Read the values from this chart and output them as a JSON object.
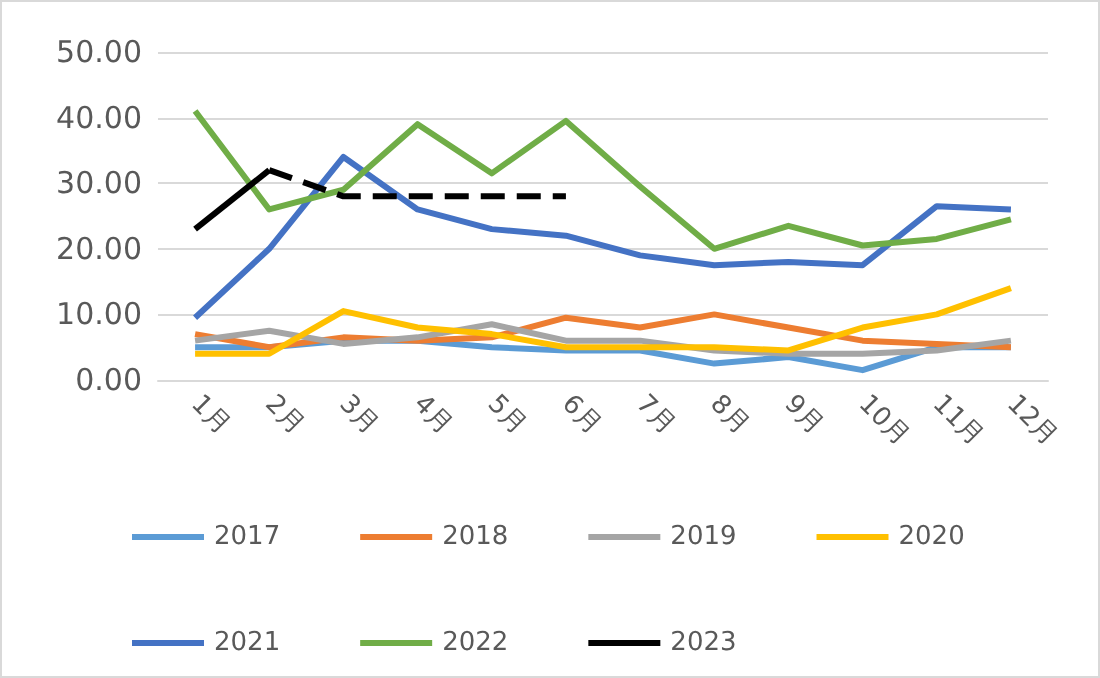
{
  "chart_data": {
    "type": "line",
    "categories": [
      "1月",
      "2月",
      "3月",
      "4月",
      "5月",
      "6月",
      "7月",
      "8月",
      "9月",
      "10月",
      "11月",
      "12月"
    ],
    "ylim": [
      0,
      50
    ],
    "yticks": [
      {
        "value": 0,
        "label": "0.00"
      },
      {
        "value": 10,
        "label": "10.00"
      },
      {
        "value": 20,
        "label": "20.00"
      },
      {
        "value": 30,
        "label": "30.00"
      },
      {
        "value": 40,
        "label": "40.00"
      },
      {
        "value": 50,
        "label": "50.00"
      }
    ],
    "grid": "y",
    "legend": "bottom",
    "marker": "none",
    "series": [
      {
        "name": "2017",
        "color": "#5b9bd5",
        "values": [
          5,
          5,
          6,
          6,
          5,
          4.5,
          4.5,
          2.5,
          3.5,
          1.5,
          5,
          5
        ]
      },
      {
        "name": "2018",
        "color": "#ed7d31",
        "values": [
          7,
          5,
          6.5,
          6,
          6.5,
          9.5,
          8,
          10,
          8,
          6,
          5.5,
          5
        ]
      },
      {
        "name": "2019",
        "color": "#a5a5a5",
        "values": [
          6,
          7.5,
          5.5,
          6.5,
          8.5,
          6,
          6,
          4.5,
          4,
          4,
          4.5,
          6
        ]
      },
      {
        "name": "2020",
        "color": "#ffc000",
        "values": [
          4,
          4,
          10.5,
          8,
          7,
          5,
          5,
          5,
          4.5,
          8,
          10,
          14
        ]
      },
      {
        "name": "2021",
        "color": "#4472c4",
        "values": [
          9.5,
          20,
          34,
          26,
          23,
          22,
          19,
          17.5,
          18,
          17.5,
          26.5,
          26
        ]
      },
      {
        "name": "2022",
        "color": "#70ad47",
        "values": [
          41,
          26,
          29,
          39,
          31.5,
          39.5,
          29.5,
          20,
          23.5,
          20.5,
          21.5,
          24.5
        ]
      },
      {
        "name": "2023",
        "color": "#000000",
        "line_style": "solid",
        "values": [
          23,
          32,
          null,
          null,
          null,
          null,
          null,
          null,
          null,
          null,
          null,
          null
        ]
      },
      {
        "color": "#000000",
        "line_style": "dashed",
        "values": [
          null,
          32,
          28,
          28,
          28,
          28,
          null,
          null,
          null,
          null,
          null,
          null
        ]
      }
    ]
  }
}
